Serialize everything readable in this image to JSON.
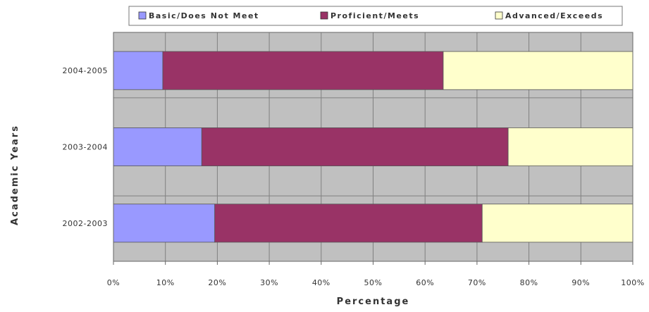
{
  "chart_data": {
    "type": "bar",
    "orientation": "horizontal",
    "stacked": true,
    "categories": [
      "2004-2005",
      "2003-2004",
      "2002-2003"
    ],
    "series": [
      {
        "name": "Basic/Does Not Meet",
        "color": "#9999ff",
        "values": [
          9.5,
          17,
          19.5
        ]
      },
      {
        "name": "Proficient/Meets",
        "color": "#993366",
        "values": [
          54,
          59,
          51.5
        ]
      },
      {
        "name": "Advanced/Exceeds",
        "color": "#ffffcc",
        "values": [
          36.5,
          24,
          29
        ]
      }
    ],
    "xlabel": "Percentage",
    "ylabel": "Academic Years",
    "xlim": [
      0,
      100
    ],
    "x_ticks": [
      "0%",
      "10%",
      "20%",
      "30%",
      "40%",
      "50%",
      "60%",
      "70%",
      "80%",
      "90%",
      "100%"
    ],
    "grid": true,
    "plot_background": "#c0c0c0",
    "gridline_color": "#808080",
    "legend_position": "top"
  }
}
